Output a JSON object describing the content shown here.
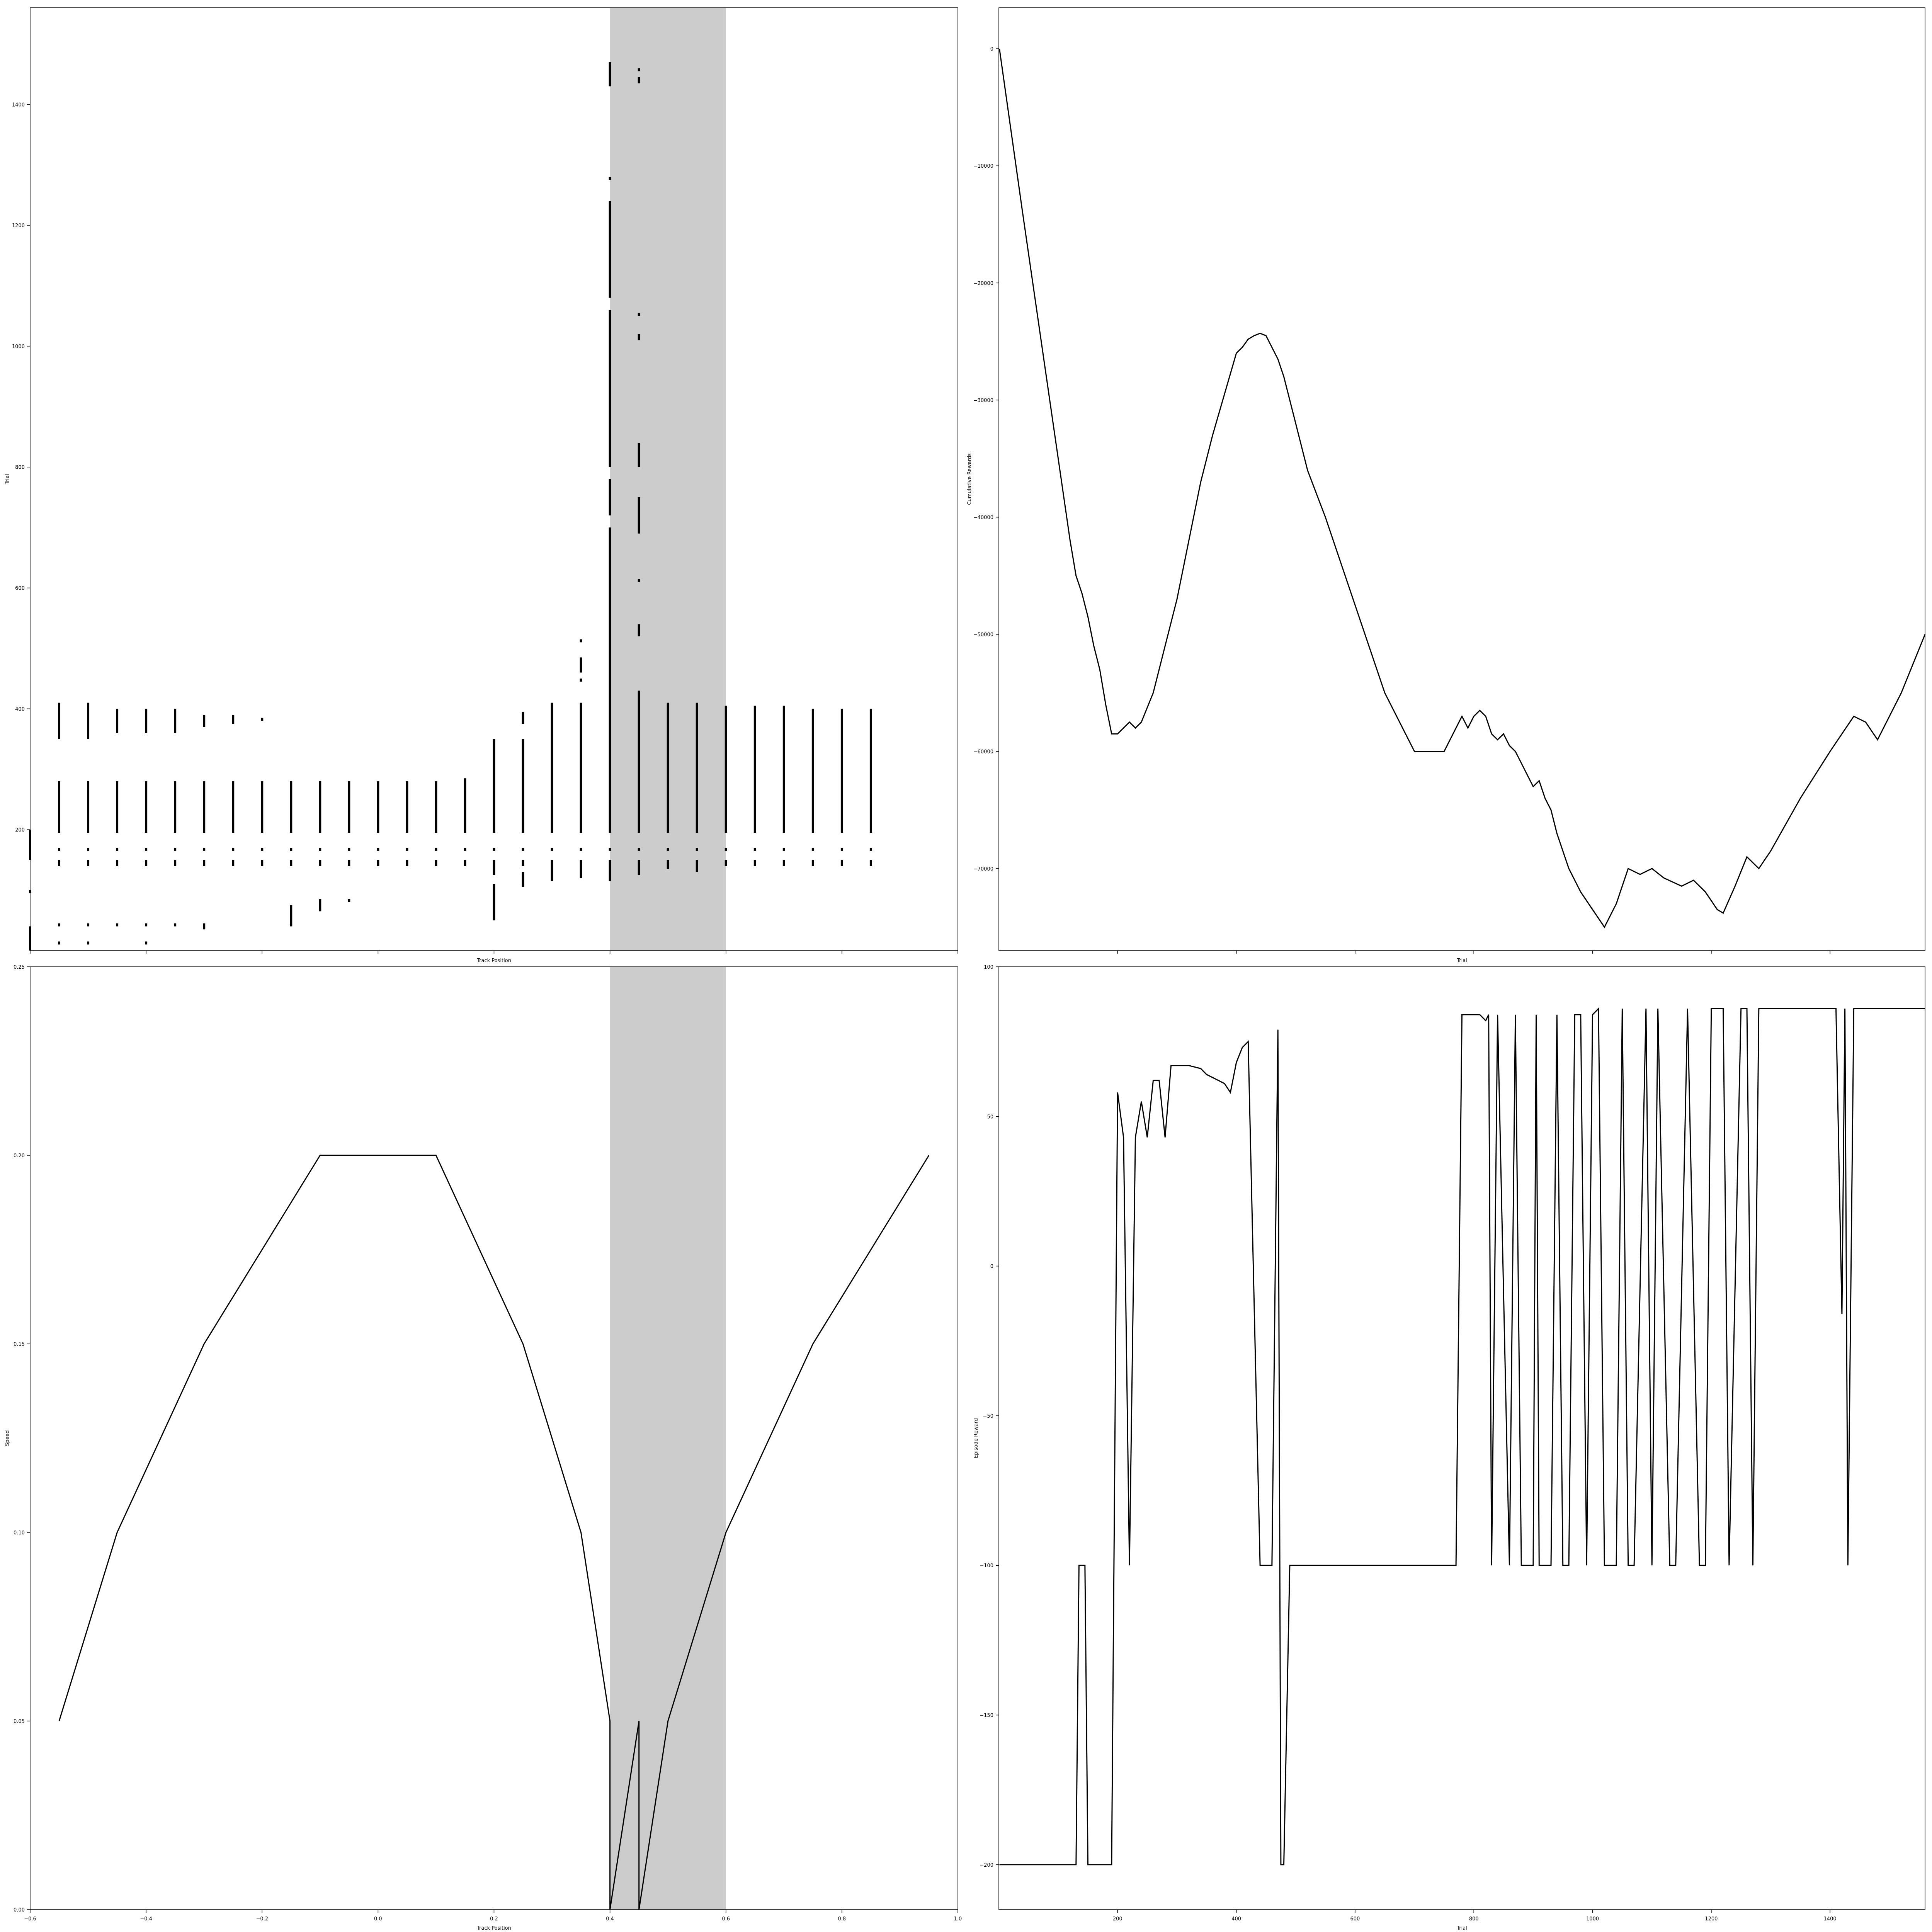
{
  "figure": {
    "background": "#ffffff",
    "line_color": "#000000",
    "shade_color": "#cccccc"
  },
  "chart_data": [
    {
      "id": "trial-raster",
      "type": "scatter",
      "xlabel": "Track Position",
      "ylabel": "Trial",
      "xlim": [
        -0.6,
        1.0
      ],
      "ylim": [
        0,
        1560
      ],
      "x_ticks_labeled": false,
      "x_ticks": [
        -0.6,
        -0.4,
        -0.2,
        0.0,
        0.2,
        0.4,
        0.6,
        0.8,
        1.0
      ],
      "y_ticks": [
        200,
        400,
        600,
        800,
        1000,
        1200,
        1400
      ],
      "y_tick_labels": [
        "200",
        "400",
        "600",
        "800",
        "1000",
        "1200",
        "1400"
      ],
      "shaded_region": [
        0.4,
        0.6
      ],
      "marker": "short vertical line",
      "series": [
        {
          "x": -0.6,
          "trial_ranges": [
            [
              0,
              40
            ],
            [
              95,
              100
            ],
            [
              150,
              200
            ]
          ]
        },
        {
          "x": -0.55,
          "trial_ranges": [
            [
              10,
              15
            ],
            [
              40,
              45
            ],
            [
              140,
              150
            ],
            [
              165,
              170
            ],
            [
              195,
              280
            ],
            [
              350,
              410
            ]
          ]
        },
        {
          "x": -0.5,
          "trial_ranges": [
            [
              10,
              15
            ],
            [
              40,
              45
            ],
            [
              140,
              150
            ],
            [
              165,
              170
            ],
            [
              195,
              280
            ],
            [
              350,
              410
            ]
          ]
        },
        {
          "x": -0.45,
          "trial_ranges": [
            [
              40,
              45
            ],
            [
              140,
              150
            ],
            [
              165,
              170
            ],
            [
              195,
              280
            ],
            [
              360,
              400
            ]
          ]
        },
        {
          "x": -0.4,
          "trial_ranges": [
            [
              10,
              15
            ],
            [
              40,
              45
            ],
            [
              140,
              150
            ],
            [
              165,
              170
            ],
            [
              195,
              280
            ],
            [
              360,
              400
            ]
          ]
        },
        {
          "x": -0.35,
          "trial_ranges": [
            [
              40,
              45
            ],
            [
              140,
              150
            ],
            [
              165,
              170
            ],
            [
              195,
              280
            ],
            [
              360,
              400
            ]
          ]
        },
        {
          "x": -0.3,
          "trial_ranges": [
            [
              35,
              45
            ],
            [
              140,
              150
            ],
            [
              165,
              170
            ],
            [
              195,
              280
            ],
            [
              370,
              390
            ]
          ]
        },
        {
          "x": -0.25,
          "trial_ranges": [
            [
              140,
              150
            ],
            [
              165,
              170
            ],
            [
              195,
              280
            ],
            [
              375,
              390
            ]
          ]
        },
        {
          "x": -0.2,
          "trial_ranges": [
            [
              140,
              150
            ],
            [
              165,
              170
            ],
            [
              195,
              280
            ],
            [
              380,
              385
            ]
          ]
        },
        {
          "x": -0.15,
          "trial_ranges": [
            [
              40,
              75
            ],
            [
              140,
              150
            ],
            [
              165,
              170
            ],
            [
              195,
              280
            ]
          ]
        },
        {
          "x": -0.1,
          "trial_ranges": [
            [
              65,
              85
            ],
            [
              140,
              150
            ],
            [
              165,
              170
            ],
            [
              195,
              280
            ]
          ]
        },
        {
          "x": -0.05,
          "trial_ranges": [
            [
              80,
              85
            ],
            [
              140,
              150
            ],
            [
              165,
              170
            ],
            [
              195,
              280
            ]
          ]
        },
        {
          "x": 0.0,
          "trial_ranges": [
            [
              140,
              150
            ],
            [
              165,
              170
            ],
            [
              195,
              280
            ]
          ]
        },
        {
          "x": 0.05,
          "trial_ranges": [
            [
              140,
              150
            ],
            [
              165,
              170
            ],
            [
              195,
              280
            ]
          ]
        },
        {
          "x": 0.1,
          "trial_ranges": [
            [
              140,
              150
            ],
            [
              165,
              170
            ],
            [
              195,
              280
            ]
          ]
        },
        {
          "x": 0.15,
          "trial_ranges": [
            [
              140,
              150
            ],
            [
              165,
              170
            ],
            [
              195,
              285
            ]
          ]
        },
        {
          "x": 0.2,
          "trial_ranges": [
            [
              50,
              110
            ],
            [
              125,
              150
            ],
            [
              165,
              170
            ],
            [
              195,
              350
            ]
          ]
        },
        {
          "x": 0.25,
          "trial_ranges": [
            [
              105,
              130
            ],
            [
              140,
              150
            ],
            [
              165,
              170
            ],
            [
              195,
              350
            ],
            [
              375,
              395
            ]
          ]
        },
        {
          "x": 0.3,
          "trial_ranges": [
            [
              115,
              150
            ],
            [
              165,
              170
            ],
            [
              195,
              410
            ]
          ]
        },
        {
          "x": 0.35,
          "trial_ranges": [
            [
              120,
              150
            ],
            [
              165,
              170
            ],
            [
              195,
              410
            ],
            [
              445,
              450
            ],
            [
              460,
              485
            ],
            [
              510,
              515
            ]
          ]
        },
        {
          "x": 0.4,
          "trial_ranges": [
            [
              115,
              150
            ],
            [
              165,
              170
            ],
            [
              195,
              700
            ],
            [
              720,
              780
            ],
            [
              800,
              1060
            ],
            [
              1080,
              1240
            ],
            [
              1275,
              1280
            ],
            [
              1430,
              1470
            ]
          ]
        },
        {
          "x": 0.45,
          "trial_ranges": [
            [
              125,
              150
            ],
            [
              165,
              170
            ],
            [
              195,
              430
            ],
            [
              520,
              540
            ],
            [
              610,
              615
            ],
            [
              690,
              750
            ],
            [
              800,
              840
            ],
            [
              1010,
              1020
            ],
            [
              1050,
              1055
            ],
            [
              1435,
              1445
            ],
            [
              1455,
              1460
            ]
          ]
        },
        {
          "x": 0.5,
          "trial_ranges": [
            [
              135,
              150
            ],
            [
              165,
              170
            ],
            [
              195,
              410
            ]
          ]
        },
        {
          "x": 0.55,
          "trial_ranges": [
            [
              130,
              150
            ],
            [
              165,
              170
            ],
            [
              195,
              410
            ]
          ]
        },
        {
          "x": 0.6,
          "trial_ranges": [
            [
              140,
              150
            ],
            [
              165,
              170
            ],
            [
              195,
              405
            ]
          ]
        },
        {
          "x": 0.65,
          "trial_ranges": [
            [
              140,
              150
            ],
            [
              165,
              170
            ],
            [
              195,
              405
            ]
          ]
        },
        {
          "x": 0.7,
          "trial_ranges": [
            [
              140,
              150
            ],
            [
              165,
              170
            ],
            [
              195,
              405
            ]
          ]
        },
        {
          "x": 0.75,
          "trial_ranges": [
            [
              140,
              150
            ],
            [
              165,
              170
            ],
            [
              195,
              400
            ]
          ]
        },
        {
          "x": 0.8,
          "trial_ranges": [
            [
              140,
              150
            ],
            [
              165,
              170
            ],
            [
              195,
              400
            ]
          ]
        },
        {
          "x": 0.85,
          "trial_ranges": [
            [
              140,
              150
            ],
            [
              165,
              170
            ],
            [
              195,
              400
            ]
          ]
        }
      ]
    },
    {
      "id": "cumulative-rewards",
      "type": "line",
      "xlabel": "Trial",
      "ylabel": "Cumulative Rewards",
      "xlim": [
        0,
        1560
      ],
      "ylim": [
        -77000,
        3500
      ],
      "x_ticks_labeled": false,
      "x_ticks": [
        200,
        400,
        600,
        800,
        1000,
        1200,
        1400
      ],
      "y_ticks": [
        0,
        -10000,
        -20000,
        -30000,
        -40000,
        -50000,
        -60000,
        -70000
      ],
      "y_tick_labels": [
        "0",
        "−10000",
        "−20000",
        "−30000",
        "−40000",
        "−50000",
        "−60000",
        "−70000"
      ],
      "x": [
        1,
        40,
        80,
        120,
        130,
        140,
        150,
        160,
        170,
        180,
        190,
        200,
        210,
        220,
        230,
        240,
        260,
        280,
        300,
        320,
        340,
        360,
        380,
        400,
        410,
        420,
        430,
        440,
        450,
        460,
        470,
        480,
        490,
        500,
        520,
        550,
        600,
        650,
        700,
        750,
        770,
        780,
        790,
        800,
        810,
        820,
        830,
        840,
        850,
        860,
        870,
        880,
        890,
        900,
        910,
        920,
        930,
        940,
        960,
        980,
        1000,
        1020,
        1040,
        1060,
        1080,
        1100,
        1120,
        1150,
        1170,
        1190,
        1210,
        1220,
        1240,
        1260,
        1280,
        1300,
        1350,
        1400,
        1440,
        1460,
        1480,
        1520,
        1560
      ],
      "y": [
        0,
        -14000,
        -28000,
        -42000,
        -45000,
        -46500,
        -48500,
        -51000,
        -53000,
        -56000,
        -58500,
        -58500,
        -58000,
        -57500,
        -58000,
        -57500,
        -55000,
        -51000,
        -47000,
        -42000,
        -37000,
        -33000,
        -29500,
        -26000,
        -25500,
        -24800,
        -24500,
        -24300,
        -24500,
        -25500,
        -26500,
        -28000,
        -30000,
        -32000,
        -36000,
        -40000,
        -47500,
        -55000,
        -60000,
        -60000,
        -58000,
        -57000,
        -58000,
        -57000,
        -56500,
        -57000,
        -58500,
        -59000,
        -58500,
        -59500,
        -60000,
        -61000,
        -62000,
        -63000,
        -62500,
        -64000,
        -65000,
        -67000,
        -70000,
        -72000,
        -73500,
        -75000,
        -73000,
        -70000,
        -70500,
        -70000,
        -70800,
        -71500,
        -71000,
        -72000,
        -73500,
        -73800,
        -71500,
        -69000,
        -70000,
        -68500,
        -64000,
        -60000,
        -57000,
        -57500,
        -59000,
        -55000,
        -50000
      ]
    },
    {
      "id": "speed-profile",
      "type": "line",
      "xlabel": "Track Position",
      "ylabel": "Speed",
      "xlim": [
        -0.6,
        1.0
      ],
      "ylim": [
        0.0,
        0.25
      ],
      "x_ticks": [
        -0.6,
        -0.4,
        -0.2,
        0.0,
        0.2,
        0.4,
        0.6,
        0.8,
        1.0
      ],
      "x_tick_labels": [
        "−0.6",
        "−0.4",
        "−0.2",
        "0.0",
        "0.2",
        "0.4",
        "0.6",
        "0.8",
        "1.0"
      ],
      "y_ticks": [
        0.0,
        0.05,
        0.1,
        0.15,
        0.2,
        0.25
      ],
      "y_tick_labels": [
        "0.00",
        "0.05",
        "0.10",
        "0.15",
        "0.20",
        "0.25"
      ],
      "shaded_region": [
        0.4,
        0.6
      ],
      "x": [
        -0.55,
        -0.45,
        -0.3,
        -0.1,
        0.1,
        0.25,
        0.35,
        0.4,
        0.4,
        0.45,
        0.45,
        0.5,
        0.6,
        0.75,
        0.95
      ],
      "y": [
        0.05,
        0.1,
        0.15,
        0.2,
        0.2,
        0.15,
        0.1,
        0.05,
        0.0,
        0.05,
        0.0,
        0.05,
        0.1,
        0.15,
        0.2
      ]
    },
    {
      "id": "episode-reward",
      "type": "line",
      "xlabel": "Trial",
      "ylabel": "Episode Reward",
      "xlim": [
        0,
        1560
      ],
      "ylim": [
        -215,
        100
      ],
      "x_ticks": [
        200,
        400,
        600,
        800,
        1000,
        1200,
        1400
      ],
      "x_tick_labels": [
        "200",
        "400",
        "600",
        "800",
        "1000",
        "1200",
        "1400"
      ],
      "y_ticks": [
        -200,
        -150,
        -100,
        -50,
        0,
        50,
        100
      ],
      "y_tick_labels": [
        "−200",
        "−150",
        "−100",
        "−50",
        "0",
        "50",
        "100"
      ],
      "x": [
        1,
        130,
        135,
        145,
        150,
        190,
        200,
        210,
        220,
        230,
        240,
        250,
        260,
        270,
        280,
        290,
        320,
        340,
        350,
        360,
        380,
        390,
        400,
        410,
        420,
        440,
        450,
        460,
        470,
        475,
        480,
        490,
        500,
        770,
        780,
        800,
        810,
        820,
        825,
        830,
        840,
        860,
        870,
        880,
        900,
        905,
        910,
        930,
        940,
        950,
        960,
        970,
        980,
        990,
        1000,
        1010,
        1020,
        1040,
        1050,
        1060,
        1070,
        1090,
        1100,
        1110,
        1130,
        1140,
        1160,
        1180,
        1190,
        1200,
        1220,
        1230,
        1250,
        1260,
        1270,
        1280,
        1300,
        1410,
        1420,
        1425,
        1430,
        1440,
        1450,
        1455,
        1460,
        1560
      ],
      "y": [
        -200,
        -200,
        -100,
        -100,
        -200,
        -200,
        58,
        43,
        -100,
        43,
        55,
        43,
        62,
        62,
        43,
        67,
        67,
        66,
        64,
        63,
        61,
        58,
        68,
        73,
        75,
        -100,
        -100,
        -100,
        79,
        -200,
        -200,
        -100,
        -100,
        -100,
        84,
        84,
        84,
        82,
        84,
        -100,
        84,
        -100,
        84,
        -100,
        -100,
        84,
        -100,
        -100,
        84,
        -100,
        -100,
        84,
        84,
        -100,
        84,
        86,
        -100,
        -100,
        86,
        -100,
        -100,
        86,
        -100,
        86,
        -100,
        -100,
        86,
        -100,
        -100,
        86,
        86,
        -100,
        86,
        86,
        -100,
        86,
        86,
        86,
        -16,
        86,
        -100,
        86,
        86,
        86,
        86,
        86
      ]
    }
  ]
}
